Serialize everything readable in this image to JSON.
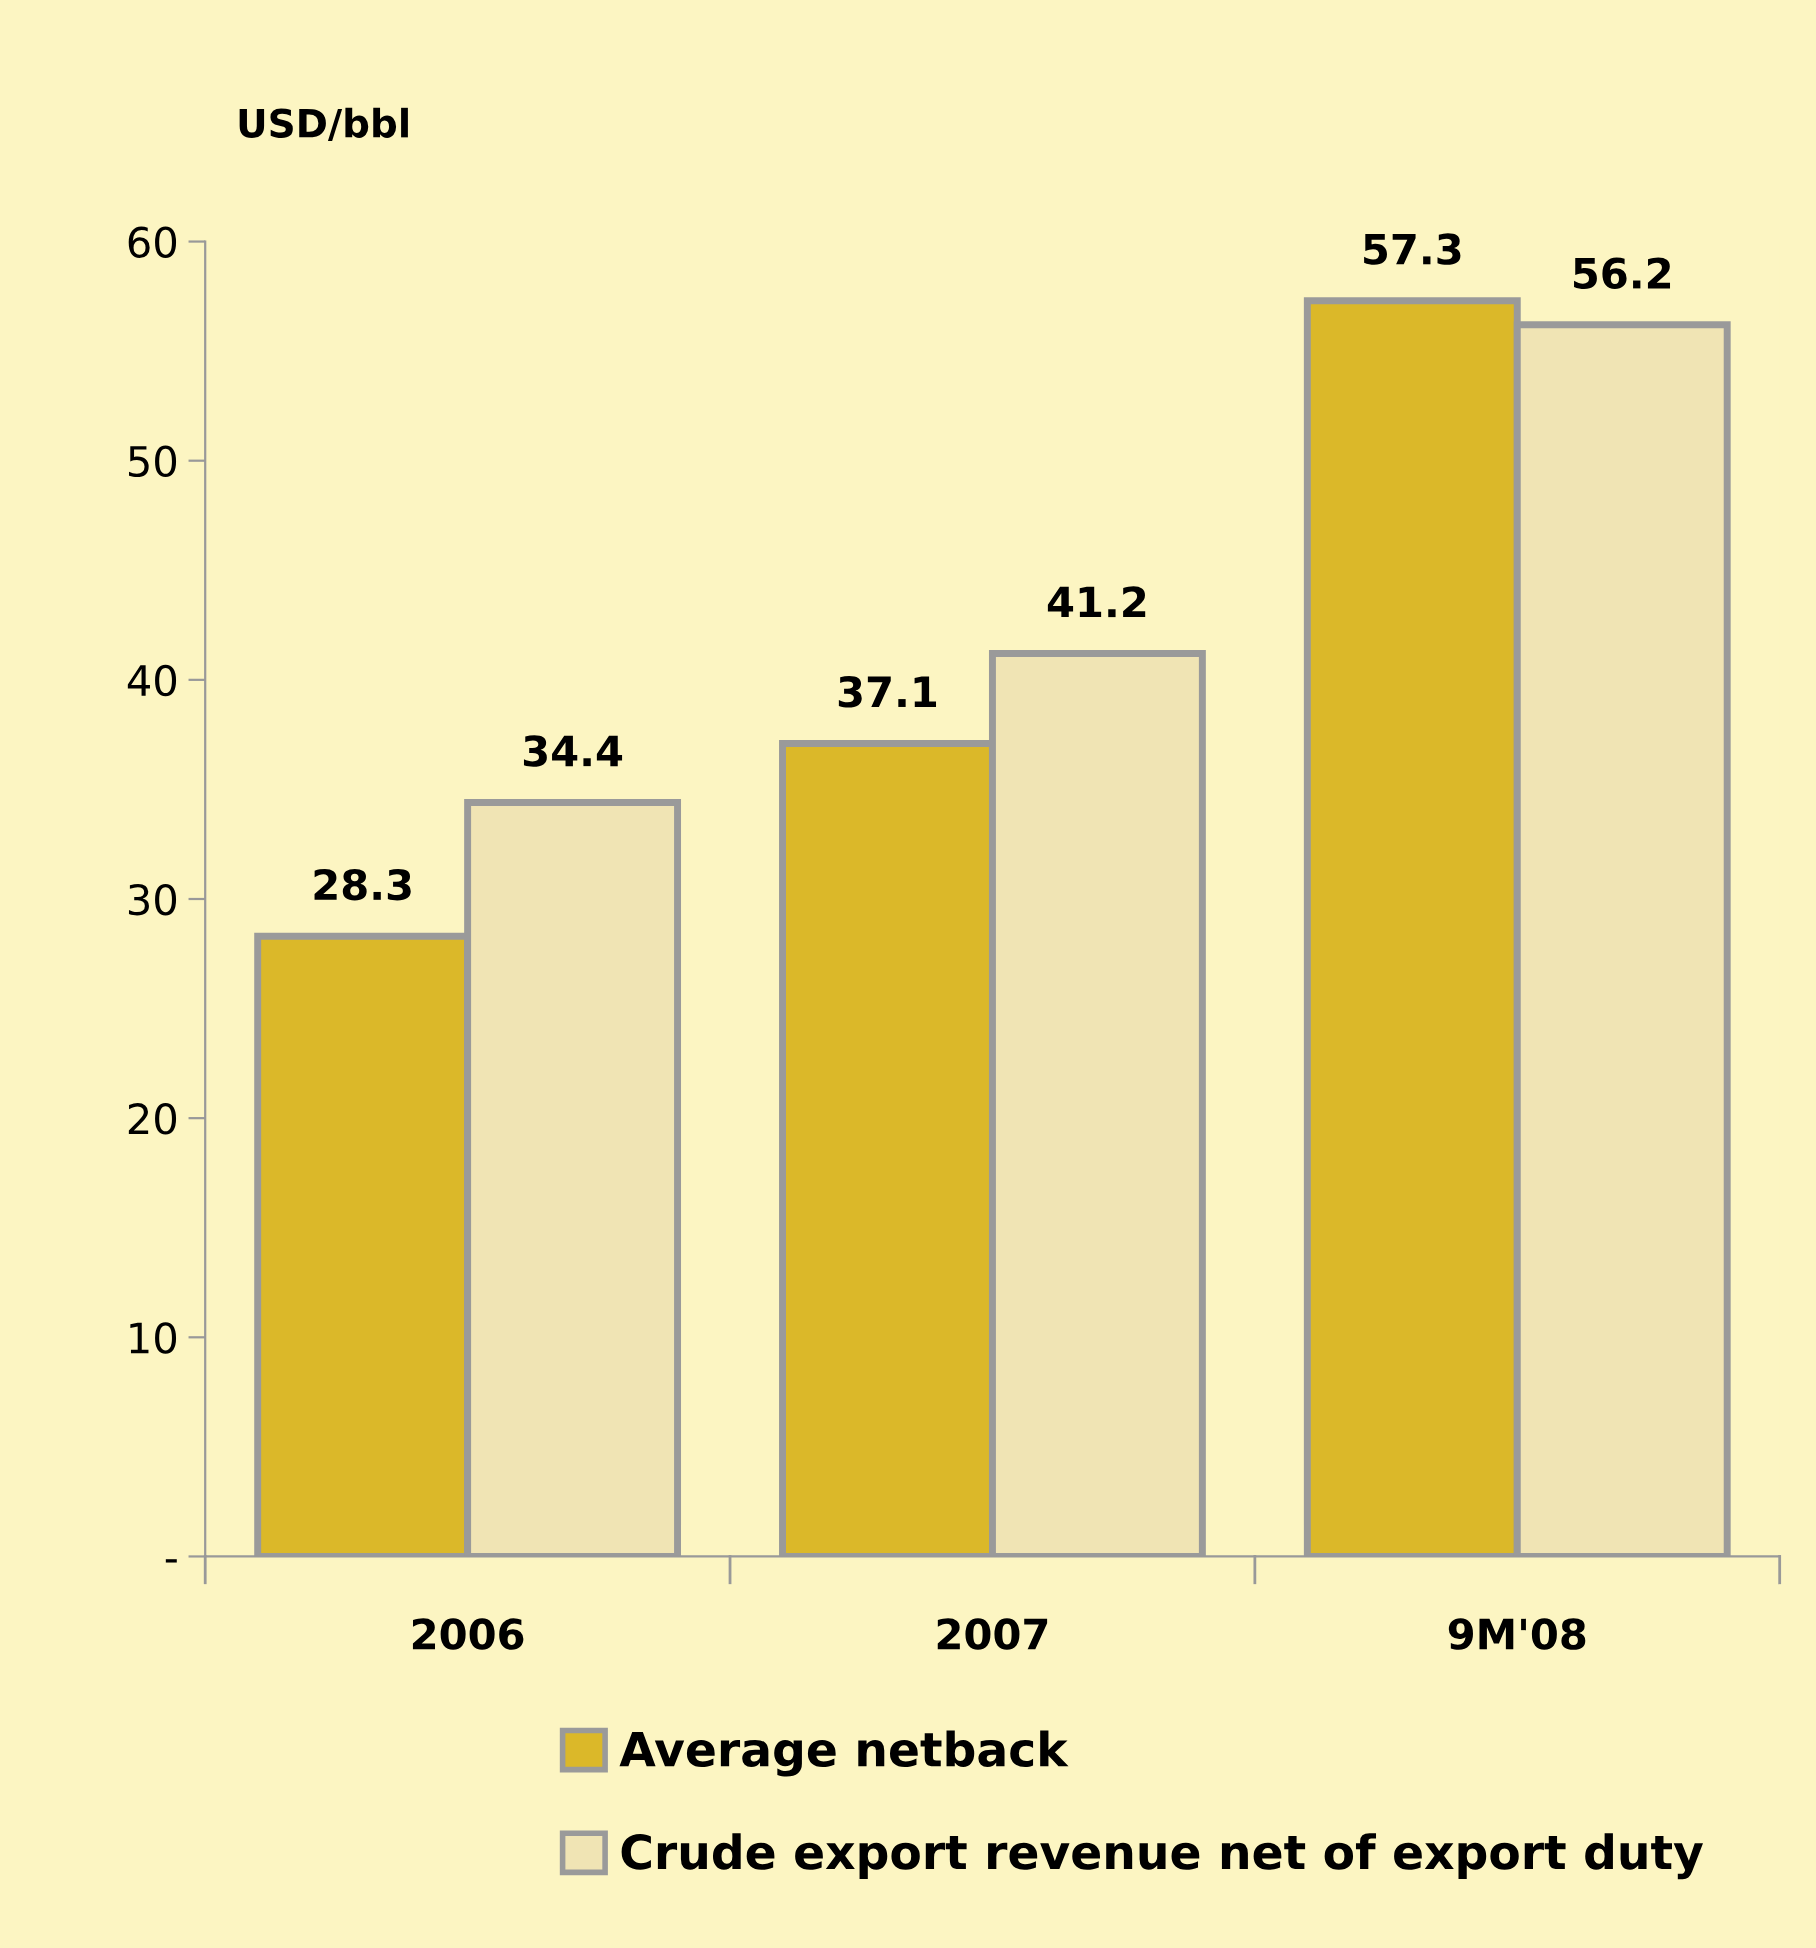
{
  "chart_data": {
    "type": "bar",
    "ylabel": "USD/bbl",
    "categories": [
      "2006",
      "2007",
      "9M'08"
    ],
    "series": [
      {
        "name": "Average netback",
        "color": "#dbb829",
        "values": [
          28.3,
          37.1,
          57.3
        ]
      },
      {
        "name": "Crude export revenue net of export duty",
        "color": "#f0e4b4",
        "values": [
          34.4,
          41.2,
          56.2
        ]
      }
    ],
    "ylim": [
      0,
      60
    ],
    "yticks": [
      {
        "value": 0,
        "label": "-"
      },
      10,
      20,
      30,
      40,
      50,
      60
    ],
    "data_labels": true,
    "grid": false,
    "legend": "bottom"
  }
}
